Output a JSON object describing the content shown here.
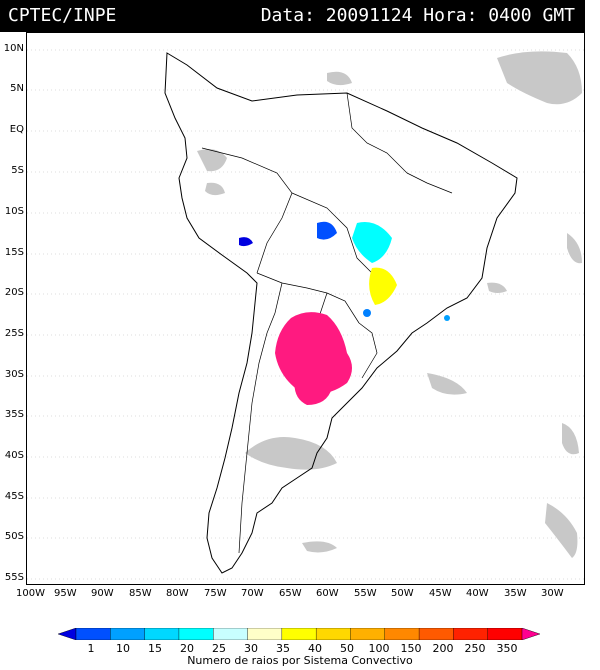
{
  "header": {
    "source": "CPTEC/INPE",
    "datetime": "Data: 20091124 Hora: 0400 GMT"
  },
  "axes": {
    "lat_labels": [
      "10N",
      "5N",
      "EQ",
      "5S",
      "10S",
      "15S",
      "20S",
      "25S",
      "30S",
      "35S",
      "40S",
      "45S",
      "50S",
      "55S"
    ],
    "lon_labels": [
      "100W",
      "95W",
      "90W",
      "85W",
      "80W",
      "75W",
      "70W",
      "65W",
      "60W",
      "55W",
      "50W",
      "45W",
      "40W",
      "35W",
      "30W"
    ]
  },
  "legend": {
    "title": "Numero de raios por Sistema Convectivo",
    "values": [
      "1",
      "10",
      "15",
      "20",
      "25",
      "30",
      "35",
      "40",
      "50",
      "100",
      "150",
      "200",
      "250",
      "350"
    ],
    "colors": [
      "#0000e0",
      "#0050ff",
      "#00a0ff",
      "#00d8ff",
      "#00ffff",
      "#c8ffff",
      "#ffffc8",
      "#ffff00",
      "#ffd800",
      "#ffb000",
      "#ff8800",
      "#ff5a00",
      "#ff2200",
      "#ff0000",
      "#ff0090"
    ]
  }
}
